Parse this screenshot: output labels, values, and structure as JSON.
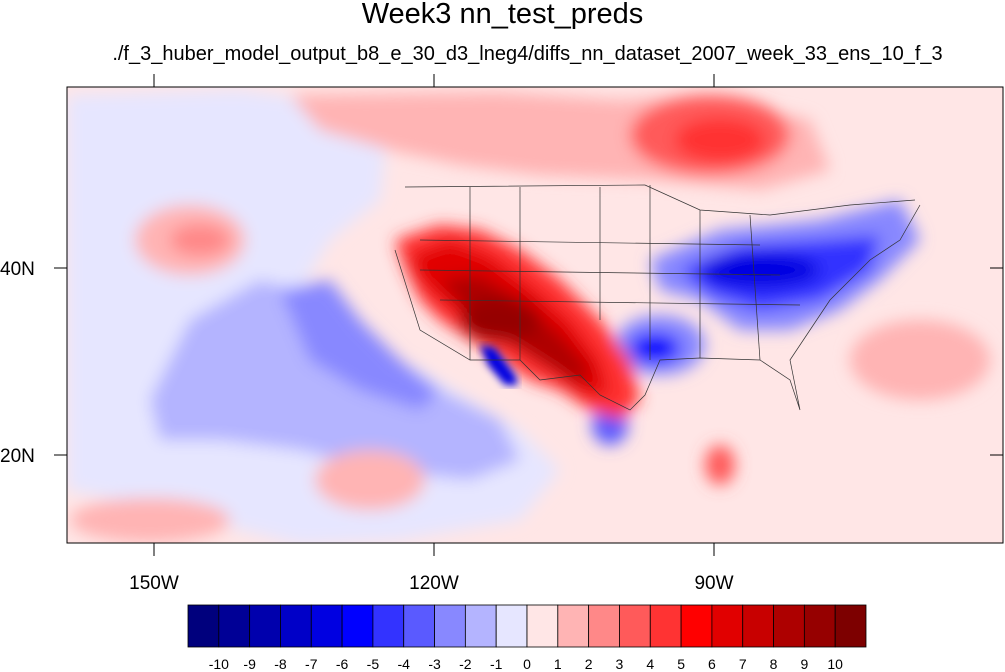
{
  "map": {
    "title": "Week3 nn_test_preds",
    "subtitle": "./f_3_huber_model_output_b8_e_30_d3_lneg4/diffs_nn_dataset_2007_week_33_ens_10_f_3",
    "lon_labels": [
      "150W",
      "120W",
      "90W"
    ],
    "lat_labels": [
      "40N",
      "20N"
    ],
    "region": "North America / Northeast Pacific",
    "lon_range": [
      "160W",
      "60W"
    ],
    "lat_range": [
      "11N",
      "60N"
    ]
  },
  "colorbar": {
    "labels": [
      "-10",
      "-9",
      "-8",
      "-7",
      "-6",
      "-5",
      "-4",
      "-3",
      "-2",
      "-1",
      "0",
      "1",
      "2",
      "3",
      "4",
      "5",
      "6",
      "7",
      "8",
      "9",
      "10"
    ],
    "colors": [
      "#00007d",
      "#000096",
      "#0000ad",
      "#0000c8",
      "#0000e1",
      "#0000ff",
      "#3333ff",
      "#5a5aff",
      "#8888ff",
      "#b4b4ff",
      "#e6e6ff",
      "#ffe6e6",
      "#ffb4b4",
      "#ff8888",
      "#ff5a5a",
      "#ff3333",
      "#ff0000",
      "#e10000",
      "#c80000",
      "#ad0000",
      "#960000",
      "#7d0000"
    ]
  }
}
